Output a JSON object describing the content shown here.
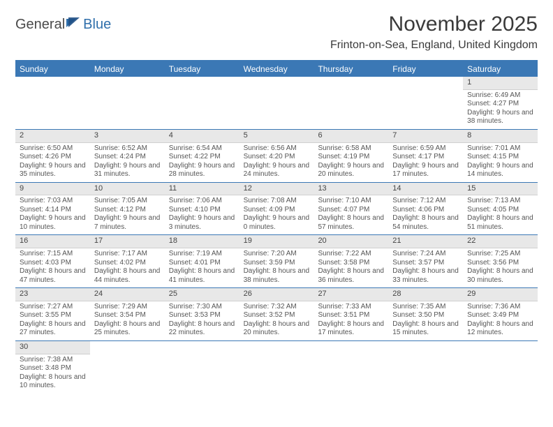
{
  "brand": {
    "part1": "General",
    "part2": "Blue"
  },
  "title": "November 2025",
  "location": "Frinton-on-Sea, England, United Kingdom",
  "colors": {
    "header_bar": "#3b78b5",
    "row_divider": "#3b78b5",
    "daynum_bg": "#e8e8e8",
    "page_bg": "#ffffff",
    "text": "#333333",
    "muted_text": "#555555"
  },
  "day_headers": [
    "Sunday",
    "Monday",
    "Tuesday",
    "Wednesday",
    "Thursday",
    "Friday",
    "Saturday"
  ],
  "weeks": [
    [
      {
        "n": "",
        "sr": "",
        "ss": "",
        "dl": ""
      },
      {
        "n": "",
        "sr": "",
        "ss": "",
        "dl": ""
      },
      {
        "n": "",
        "sr": "",
        "ss": "",
        "dl": ""
      },
      {
        "n": "",
        "sr": "",
        "ss": "",
        "dl": ""
      },
      {
        "n": "",
        "sr": "",
        "ss": "",
        "dl": ""
      },
      {
        "n": "",
        "sr": "",
        "ss": "",
        "dl": ""
      },
      {
        "n": "1",
        "sr": "Sunrise: 6:49 AM",
        "ss": "Sunset: 4:27 PM",
        "dl": "Daylight: 9 hours and 38 minutes."
      }
    ],
    [
      {
        "n": "2",
        "sr": "Sunrise: 6:50 AM",
        "ss": "Sunset: 4:26 PM",
        "dl": "Daylight: 9 hours and 35 minutes."
      },
      {
        "n": "3",
        "sr": "Sunrise: 6:52 AM",
        "ss": "Sunset: 4:24 PM",
        "dl": "Daylight: 9 hours and 31 minutes."
      },
      {
        "n": "4",
        "sr": "Sunrise: 6:54 AM",
        "ss": "Sunset: 4:22 PM",
        "dl": "Daylight: 9 hours and 28 minutes."
      },
      {
        "n": "5",
        "sr": "Sunrise: 6:56 AM",
        "ss": "Sunset: 4:20 PM",
        "dl": "Daylight: 9 hours and 24 minutes."
      },
      {
        "n": "6",
        "sr": "Sunrise: 6:58 AM",
        "ss": "Sunset: 4:19 PM",
        "dl": "Daylight: 9 hours and 20 minutes."
      },
      {
        "n": "7",
        "sr": "Sunrise: 6:59 AM",
        "ss": "Sunset: 4:17 PM",
        "dl": "Daylight: 9 hours and 17 minutes."
      },
      {
        "n": "8",
        "sr": "Sunrise: 7:01 AM",
        "ss": "Sunset: 4:15 PM",
        "dl": "Daylight: 9 hours and 14 minutes."
      }
    ],
    [
      {
        "n": "9",
        "sr": "Sunrise: 7:03 AM",
        "ss": "Sunset: 4:14 PM",
        "dl": "Daylight: 9 hours and 10 minutes."
      },
      {
        "n": "10",
        "sr": "Sunrise: 7:05 AM",
        "ss": "Sunset: 4:12 PM",
        "dl": "Daylight: 9 hours and 7 minutes."
      },
      {
        "n": "11",
        "sr": "Sunrise: 7:06 AM",
        "ss": "Sunset: 4:10 PM",
        "dl": "Daylight: 9 hours and 3 minutes."
      },
      {
        "n": "12",
        "sr": "Sunrise: 7:08 AM",
        "ss": "Sunset: 4:09 PM",
        "dl": "Daylight: 9 hours and 0 minutes."
      },
      {
        "n": "13",
        "sr": "Sunrise: 7:10 AM",
        "ss": "Sunset: 4:07 PM",
        "dl": "Daylight: 8 hours and 57 minutes."
      },
      {
        "n": "14",
        "sr": "Sunrise: 7:12 AM",
        "ss": "Sunset: 4:06 PM",
        "dl": "Daylight: 8 hours and 54 minutes."
      },
      {
        "n": "15",
        "sr": "Sunrise: 7:13 AM",
        "ss": "Sunset: 4:05 PM",
        "dl": "Daylight: 8 hours and 51 minutes."
      }
    ],
    [
      {
        "n": "16",
        "sr": "Sunrise: 7:15 AM",
        "ss": "Sunset: 4:03 PM",
        "dl": "Daylight: 8 hours and 47 minutes."
      },
      {
        "n": "17",
        "sr": "Sunrise: 7:17 AM",
        "ss": "Sunset: 4:02 PM",
        "dl": "Daylight: 8 hours and 44 minutes."
      },
      {
        "n": "18",
        "sr": "Sunrise: 7:19 AM",
        "ss": "Sunset: 4:01 PM",
        "dl": "Daylight: 8 hours and 41 minutes."
      },
      {
        "n": "19",
        "sr": "Sunrise: 7:20 AM",
        "ss": "Sunset: 3:59 PM",
        "dl": "Daylight: 8 hours and 38 minutes."
      },
      {
        "n": "20",
        "sr": "Sunrise: 7:22 AM",
        "ss": "Sunset: 3:58 PM",
        "dl": "Daylight: 8 hours and 36 minutes."
      },
      {
        "n": "21",
        "sr": "Sunrise: 7:24 AM",
        "ss": "Sunset: 3:57 PM",
        "dl": "Daylight: 8 hours and 33 minutes."
      },
      {
        "n": "22",
        "sr": "Sunrise: 7:25 AM",
        "ss": "Sunset: 3:56 PM",
        "dl": "Daylight: 8 hours and 30 minutes."
      }
    ],
    [
      {
        "n": "23",
        "sr": "Sunrise: 7:27 AM",
        "ss": "Sunset: 3:55 PM",
        "dl": "Daylight: 8 hours and 27 minutes."
      },
      {
        "n": "24",
        "sr": "Sunrise: 7:29 AM",
        "ss": "Sunset: 3:54 PM",
        "dl": "Daylight: 8 hours and 25 minutes."
      },
      {
        "n": "25",
        "sr": "Sunrise: 7:30 AM",
        "ss": "Sunset: 3:53 PM",
        "dl": "Daylight: 8 hours and 22 minutes."
      },
      {
        "n": "26",
        "sr": "Sunrise: 7:32 AM",
        "ss": "Sunset: 3:52 PM",
        "dl": "Daylight: 8 hours and 20 minutes."
      },
      {
        "n": "27",
        "sr": "Sunrise: 7:33 AM",
        "ss": "Sunset: 3:51 PM",
        "dl": "Daylight: 8 hours and 17 minutes."
      },
      {
        "n": "28",
        "sr": "Sunrise: 7:35 AM",
        "ss": "Sunset: 3:50 PM",
        "dl": "Daylight: 8 hours and 15 minutes."
      },
      {
        "n": "29",
        "sr": "Sunrise: 7:36 AM",
        "ss": "Sunset: 3:49 PM",
        "dl": "Daylight: 8 hours and 12 minutes."
      }
    ],
    [
      {
        "n": "30",
        "sr": "Sunrise: 7:38 AM",
        "ss": "Sunset: 3:48 PM",
        "dl": "Daylight: 8 hours and 10 minutes."
      },
      {
        "n": "",
        "sr": "",
        "ss": "",
        "dl": ""
      },
      {
        "n": "",
        "sr": "",
        "ss": "",
        "dl": ""
      },
      {
        "n": "",
        "sr": "",
        "ss": "",
        "dl": ""
      },
      {
        "n": "",
        "sr": "",
        "ss": "",
        "dl": ""
      },
      {
        "n": "",
        "sr": "",
        "ss": "",
        "dl": ""
      },
      {
        "n": "",
        "sr": "",
        "ss": "",
        "dl": ""
      }
    ]
  ]
}
